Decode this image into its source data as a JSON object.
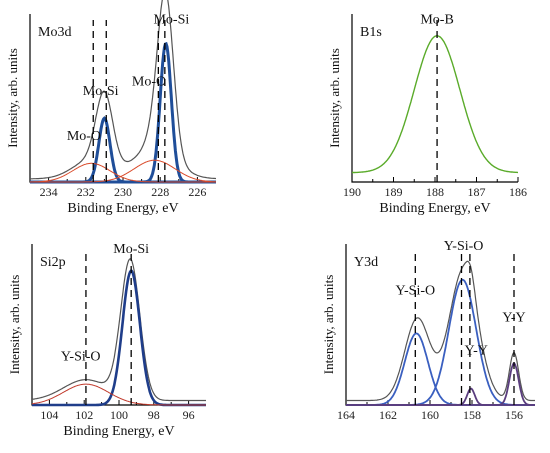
{
  "chart_data": [
    {
      "type": "line",
      "panel": "Mo3d",
      "title": "Mo3d",
      "xlabel": "Binding Energy, eV",
      "ylabel": "Intensity, arb. units",
      "xlim": [
        235,
        225
      ],
      "xticks": [
        234,
        232,
        230,
        228,
        226
      ],
      "ylim": [
        0,
        1.08
      ],
      "series": [
        {
          "color": "#555555",
          "width": 1.2,
          "baseline": 0.02,
          "peaks": [
            [
              231.7,
              0.12,
              1.0
            ],
            [
              231.0,
              0.46,
              0.45
            ],
            [
              228.3,
              0.2,
              1.1
            ],
            [
              227.7,
              0.98,
              0.42
            ],
            [
              228.2,
              0.1,
              0.45
            ]
          ]
        },
        {
          "color": "#1f4e99",
          "width": 3.0,
          "baseline": 0.0,
          "peaks": [
            [
              231.0,
              0.41,
              0.3
            ]
          ]
        },
        {
          "color": "#1f4e99",
          "width": 3.0,
          "baseline": 0.0,
          "peaks": [
            [
              227.7,
              0.89,
              0.3
            ]
          ]
        },
        {
          "color": "#d94a2a",
          "width": 1.0,
          "baseline": 0.0,
          "peaks": [
            [
              231.7,
              0.12,
              1.0
            ]
          ]
        },
        {
          "color": "#d94a2a",
          "width": 1.0,
          "baseline": 0.0,
          "peaks": [
            [
              228.3,
              0.14,
              1.1
            ]
          ]
        }
      ],
      "markers": [
        231.6,
        230.9,
        228.1,
        227.75
      ],
      "annotations": [
        {
          "text": "Mo-O",
          "x": 232.1,
          "y": 0.27
        },
        {
          "text": "Mo-Si",
          "x": 231.2,
          "y": 0.56
        },
        {
          "text": "Mo-O",
          "x": 228.6,
          "y": 0.62
        },
        {
          "text": "Mo-Si",
          "x": 227.4,
          "y": 1.02
        }
      ]
    },
    {
      "type": "line",
      "panel": "B1s",
      "title": "B1s",
      "xlabel": "Binding Energy, eV",
      "ylabel": "Intensity, arb. units",
      "xlim": [
        190,
        186
      ],
      "xticks": [
        190,
        189,
        188,
        187,
        186
      ],
      "ylim": [
        0,
        1.08
      ],
      "series": [
        {
          "color": "#5aab2a",
          "width": 1.4,
          "baseline": 0.06,
          "peaks": [
            [
              187.95,
              0.88,
              0.55
            ]
          ]
        }
      ],
      "markers": [
        187.95
      ],
      "annotations": [
        {
          "text": "Mo-B",
          "x": 187.95,
          "y": 1.02
        }
      ]
    },
    {
      "type": "line",
      "panel": "Si2p",
      "title": "Si2p",
      "xlabel": "Binding Energy, eV",
      "ylabel": "Intensity, arb. units",
      "xlim": [
        105,
        95
      ],
      "xticks": [
        104,
        102,
        100,
        98,
        96
      ],
      "ylim": [
        0,
        1.08
      ],
      "series": [
        {
          "color": "#555555",
          "width": 1.2,
          "baseline": 0.03,
          "peaks": [
            [
              101.9,
              0.14,
              1.3
            ],
            [
              99.35,
              0.93,
              0.55
            ]
          ]
        },
        {
          "color": "#1f3d8a",
          "width": 2.6,
          "baseline": 0.0,
          "peaks": [
            [
              99.3,
              0.9,
              0.5
            ]
          ]
        },
        {
          "color": "#c0392b",
          "width": 1.0,
          "baseline": 0.0,
          "peaks": [
            [
              101.9,
              0.14,
              1.3
            ]
          ]
        }
      ],
      "markers": [
        101.9,
        99.3
      ],
      "annotations": [
        {
          "text": "Y-Si-O",
          "x": 102.2,
          "y": 0.3
        },
        {
          "text": "Mo-Si",
          "x": 99.3,
          "y": 1.02
        }
      ]
    },
    {
      "type": "line",
      "panel": "Y3d",
      "title": "Y3d",
      "xlabel": "",
      "ylabel": "Intensity, arb. units",
      "xlim": [
        164,
        155
      ],
      "xticks": [
        164,
        162,
        160,
        158,
        156
      ],
      "ylim": [
        0,
        1.08
      ],
      "series": [
        {
          "color": "#555555",
          "width": 1.2,
          "baseline": 0.03,
          "peaks": [
            [
              160.6,
              0.55,
              0.6
            ],
            [
              158.4,
              0.88,
              0.68
            ],
            [
              158.05,
              0.12,
              0.2
            ],
            [
              156.0,
              0.32,
              0.22
            ]
          ]
        },
        {
          "color": "#3a5fc0",
          "width": 1.8,
          "baseline": 0.0,
          "peaks": [
            [
              160.65,
              0.48,
              0.55
            ]
          ]
        },
        {
          "color": "#3a5fc0",
          "width": 1.8,
          "baseline": 0.0,
          "peaks": [
            [
              158.45,
              0.84,
              0.65
            ]
          ]
        },
        {
          "color": "#5a3d7e",
          "width": 1.8,
          "baseline": 0.0,
          "peaks": [
            [
              158.05,
              0.11,
              0.18
            ]
          ]
        },
        {
          "color": "#5a3d7e",
          "width": 1.8,
          "baseline": 0.0,
          "peaks": [
            [
              156.0,
              0.28,
              0.22
            ]
          ]
        }
      ],
      "markers": [
        160.7,
        158.5,
        158.1,
        156.0
      ],
      "annotations": [
        {
          "text": "Y-Si-O",
          "x": 160.7,
          "y": 0.74
        },
        {
          "text": "Y-Si-O",
          "x": 158.4,
          "y": 1.04
        },
        {
          "text": "Y-Y",
          "x": 157.8,
          "y": 0.34
        },
        {
          "text": "Y-Y",
          "x": 156.0,
          "y": 0.56
        }
      ]
    }
  ]
}
